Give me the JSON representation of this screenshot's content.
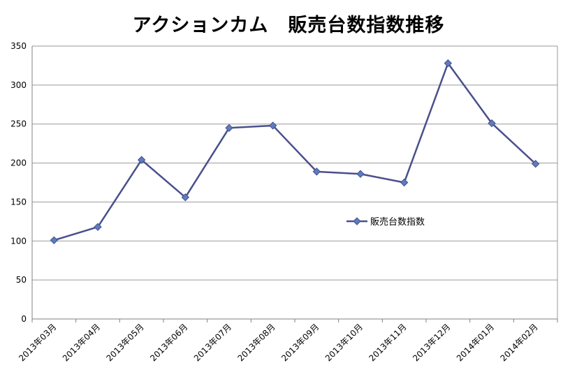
{
  "chart_data": {
    "type": "line",
    "title": "アクションカム　販売台数指数推移",
    "xlabel": "",
    "ylabel": "",
    "categories": [
      "2013年03月",
      "2013年04月",
      "2013年05月",
      "2013年06月",
      "2013年07月",
      "2013年08月",
      "2013年09月",
      "2013年10月",
      "2013年11月",
      "2013年12月",
      "2014年01月",
      "2014年02月"
    ],
    "series": [
      {
        "name": "販売台数指数",
        "values": [
          101,
          118,
          204,
          156,
          245,
          248,
          189,
          186,
          175,
          328,
          251,
          199
        ],
        "color": "#4a4f8c",
        "marker_color": "#5b7cc0"
      }
    ],
    "ylim": [
      0,
      350
    ],
    "yticks": [
      0,
      50,
      100,
      150,
      200,
      250,
      300,
      350
    ],
    "grid": true,
    "legend_position": "center-right"
  }
}
